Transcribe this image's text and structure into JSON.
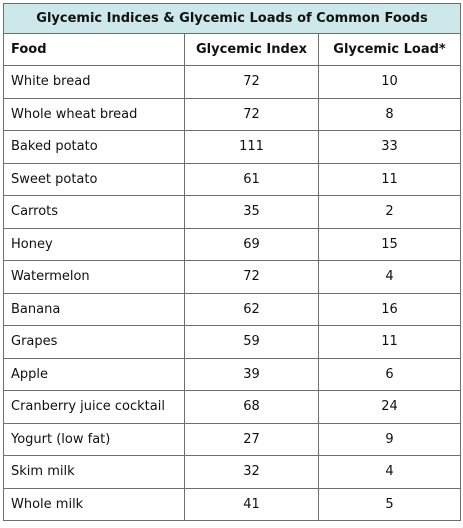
{
  "table": {
    "title": "Glycemic Indices & Glycemic Loads of Common Foods",
    "headers": [
      "Food",
      "Glycemic Index",
      "Glycemic Load*"
    ],
    "rows": [
      [
        "White bread",
        "72",
        "10"
      ],
      [
        "Whole wheat bread",
        "72",
        "8"
      ],
      [
        "Baked potato",
        "111",
        "33"
      ],
      [
        "Sweet potato",
        "61",
        "11"
      ],
      [
        "Carrots",
        "35",
        "2"
      ],
      [
        "Honey",
        "69",
        "15"
      ],
      [
        "Watermelon",
        "72",
        "4"
      ],
      [
        "Banana",
        "62",
        "16"
      ],
      [
        "Grapes",
        "59",
        "11"
      ],
      [
        "Apple",
        "39",
        "6"
      ],
      [
        "Cranberry juice cocktail",
        "68",
        "24"
      ],
      [
        "Yogurt (low fat)",
        "27",
        "9"
      ],
      [
        "Skim milk",
        "32",
        "4"
      ],
      [
        "Whole milk",
        "41",
        "5"
      ]
    ]
  },
  "colors": {
    "title_background": "#cce8ea",
    "border": "#6e6e6e"
  }
}
